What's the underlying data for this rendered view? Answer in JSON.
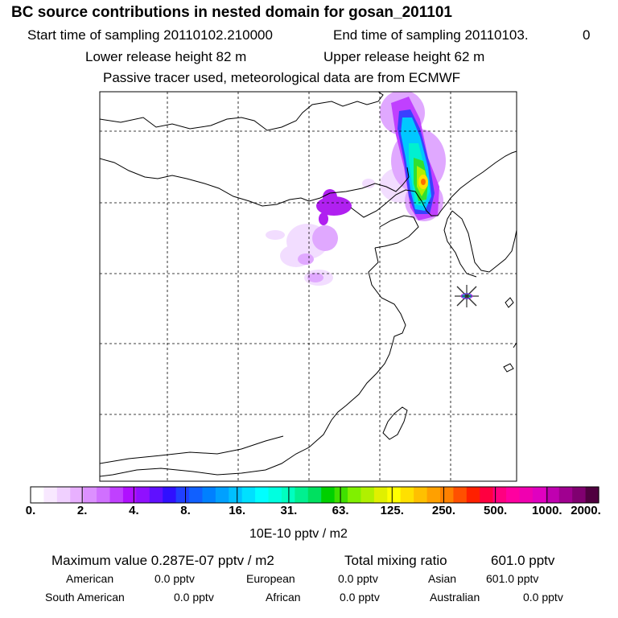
{
  "header": {
    "title": "BC  source contributions in nested domain for gosan_201101",
    "start_label": "Start time of sampling 20110102.210000",
    "end_label": "End time of sampling 20110103.",
    "end_suffix": "0",
    "lower_release": "Lower release height   82 m",
    "upper_release": "Upper release height   62 m",
    "tracer_note": "Passive tracer used, meteorological data are from ECMWF"
  },
  "map": {
    "receptor_marker": "star-cross-icon",
    "receptor_name": "gosan",
    "plume_colors": [
      "#b020f0",
      "#4040ff",
      "#00c8ff",
      "#00ffd8",
      "#30e030",
      "#a8f000",
      "#ffe000",
      "#ff7000"
    ]
  },
  "colorbar": {
    "ticks": [
      "0.",
      "2.",
      "4.",
      "8.",
      "16.",
      "31.",
      "63.",
      "125.",
      "250.",
      "500.",
      "1000.",
      "2000."
    ],
    "colors": [
      "#ffffff",
      "#f8e8ff",
      "#f0d0ff",
      "#e8b0ff",
      "#dc90ff",
      "#d070ff",
      "#c040ff",
      "#b010ff",
      "#9010ff",
      "#6010ff",
      "#3010ff",
      "#2040ff",
      "#1060ff",
      "#0080ff",
      "#00a0ff",
      "#00c0ff",
      "#00e0ff",
      "#00ffff",
      "#00ffe0",
      "#00ffc0",
      "#00f090",
      "#00e060",
      "#00d000",
      "#40e000",
      "#80f000",
      "#b0f000",
      "#e0f000",
      "#ffff00",
      "#ffe000",
      "#ffc000",
      "#ffa000",
      "#ff8000",
      "#ff5000",
      "#ff2000",
      "#ff0040",
      "#ff0080",
      "#ff00a0",
      "#f000b0",
      "#e000c0",
      "#c000b0",
      "#a00090",
      "#800070",
      "#500040"
    ],
    "units": "10E-10 pptv / m2"
  },
  "stats": {
    "max_label": "Maximum value  0.287E-07 pptv / m2",
    "total_label": "Total mixing ratio",
    "total_value": "601.0 pptv",
    "regions": [
      {
        "name": "American",
        "value": "0.0 pptv"
      },
      {
        "name": "European",
        "value": "0.0 pptv"
      },
      {
        "name": "Asian",
        "value": "601.0 pptv"
      },
      {
        "name": "South American",
        "value": "0.0 pptv"
      },
      {
        "name": "African",
        "value": "0.0 pptv"
      },
      {
        "name": "Australian",
        "value": "0.0 pptv"
      }
    ]
  }
}
